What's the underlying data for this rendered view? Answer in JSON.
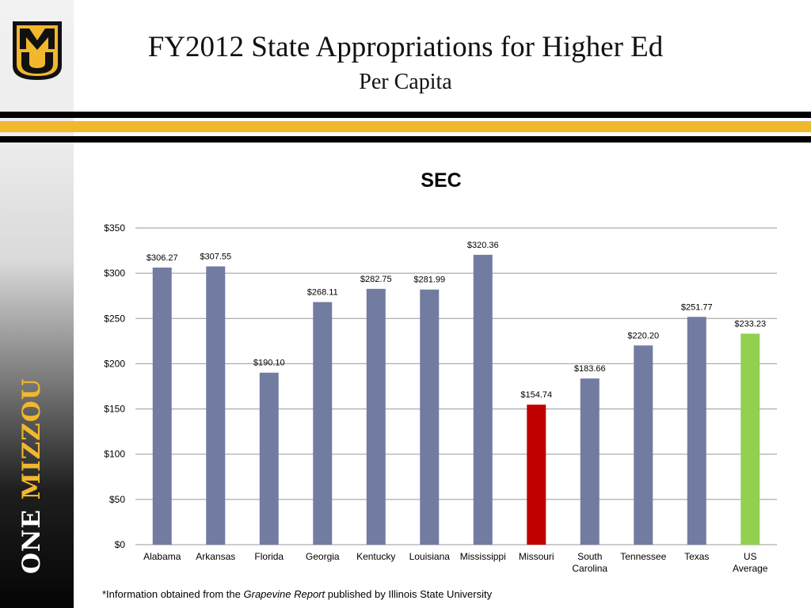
{
  "slide": {
    "title": "FY2012 State Appropriations for Higher Ed",
    "subtitle": "Per Capita",
    "brand_one": "ONE",
    "brand_mizzou": "MIZZOU",
    "logo_text": "MU",
    "footnote": {
      "pre": "*Information obtained from the ",
      "italic": "Grapevine Report",
      "post": " published by Illinois State University"
    },
    "colors": {
      "gold": "#f1b82d",
      "black": "#000000"
    }
  },
  "chart_data": {
    "type": "bar",
    "title": "SEC",
    "xlabel": "",
    "ylabel": "",
    "ylim": [
      0,
      350
    ],
    "yticks": [
      0,
      50,
      100,
      150,
      200,
      250,
      300,
      350
    ],
    "ytick_labels": [
      "$0",
      "$50",
      "$100",
      "$150",
      "$200",
      "$250",
      "$300",
      "$350"
    ],
    "grid": true,
    "legend": "none",
    "categories": [
      [
        "Alabama"
      ],
      [
        "Arkansas"
      ],
      [
        "Florida"
      ],
      [
        "Georgia"
      ],
      [
        "Kentucky"
      ],
      [
        "Louisiana"
      ],
      [
        "Mississippi"
      ],
      [
        "Missouri"
      ],
      [
        "South",
        "Carolina"
      ],
      [
        "Tennessee"
      ],
      [
        "Texas"
      ],
      [
        "US",
        "Average"
      ]
    ],
    "values": [
      306.27,
      307.55,
      190.1,
      268.11,
      282.75,
      281.99,
      320.36,
      154.74,
      183.66,
      220.2,
      251.77,
      233.23
    ],
    "data_labels": [
      "$306.27",
      "$307.55",
      "$190.10",
      "$268.11",
      "$282.75",
      "$281.99",
      "$320.36",
      "$154.74",
      "$183.66",
      "$220.20",
      "$251.77",
      "$233.23"
    ],
    "colors": [
      "#717ca0",
      "#717ca0",
      "#717ca0",
      "#717ca0",
      "#717ca0",
      "#717ca0",
      "#717ca0",
      "#c00000",
      "#717ca0",
      "#717ca0",
      "#717ca0",
      "#92d050"
    ]
  }
}
